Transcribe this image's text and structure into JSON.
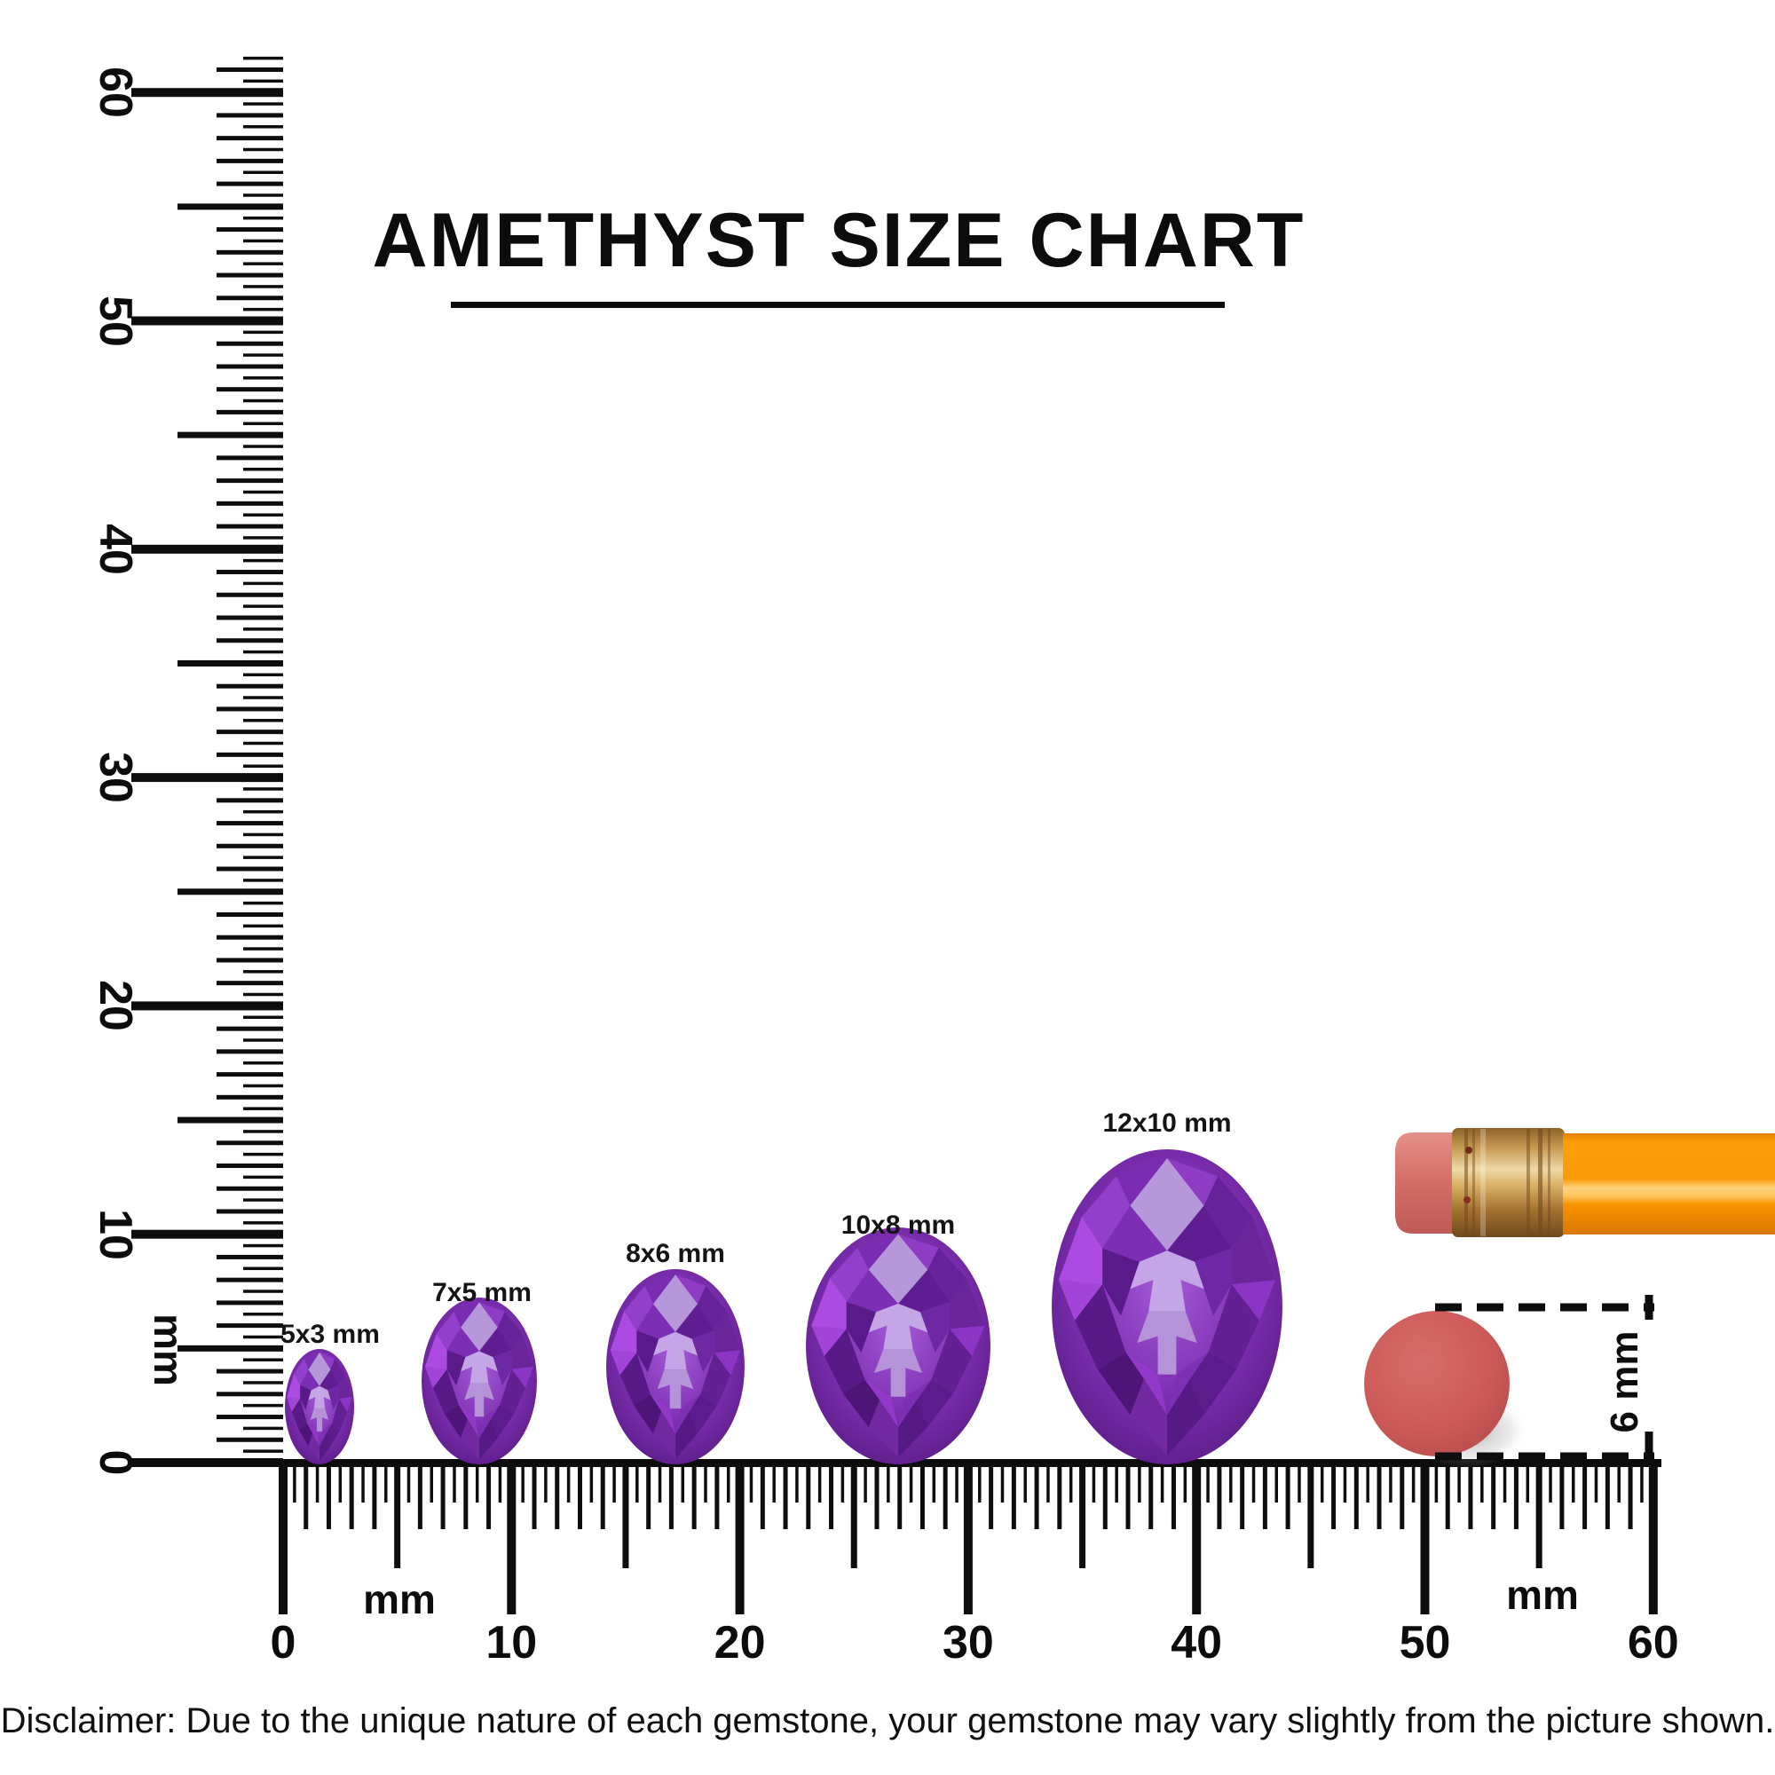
{
  "title": {
    "text": "AMETHYST SIZE CHART"
  },
  "vertical_ruler": {
    "unit": "mm",
    "tick_values": [
      0,
      10,
      20,
      30,
      40,
      50,
      60
    ],
    "labels": [
      "0",
      "10",
      "20",
      "30",
      "40",
      "50",
      "60"
    ],
    "range_mm": [
      0,
      60
    ]
  },
  "horizontal_ruler": {
    "unit_left": "mm",
    "unit_right": "mm",
    "tick_values": [
      0,
      10,
      20,
      30,
      40,
      50,
      60
    ],
    "labels": [
      "0",
      "10",
      "20",
      "30",
      "40",
      "50",
      "60"
    ],
    "range_mm": [
      0,
      60
    ]
  },
  "gems": [
    {
      "label": "5x3 mm",
      "length_mm": 5,
      "width_mm": 3
    },
    {
      "label": "7x5 mm",
      "length_mm": 7,
      "width_mm": 5
    },
    {
      "label": "8x6 mm",
      "length_mm": 8,
      "width_mm": 6
    },
    {
      "label": "10x8 mm",
      "length_mm": 10,
      "width_mm": 8
    },
    {
      "label": "12x10 mm",
      "length_mm": 12,
      "width_mm": 10
    }
  ],
  "reference_objects": {
    "pencil": {
      "name": "pencil with eraser",
      "parts": [
        "eraser",
        "ferrule",
        "body"
      ]
    },
    "eraser_disc": {
      "label": "6 mm",
      "diameter_mm": 6
    }
  },
  "disclaimer": "Disclaimer: Due to the unique nature of each gemstone, your gemstone may vary slightly from the picture shown.",
  "colors": {
    "ink": "#0d0d0d",
    "gem_primary": "#7C2EAF",
    "gem_dark": "#54187F",
    "gem_light": "#C4A5E6",
    "pencil_body": "#FB9D09",
    "pencil_ferrule": "#D9AE6A",
    "pencil_eraser": "#D4706B",
    "eraser_disc": "#CD5A59"
  }
}
